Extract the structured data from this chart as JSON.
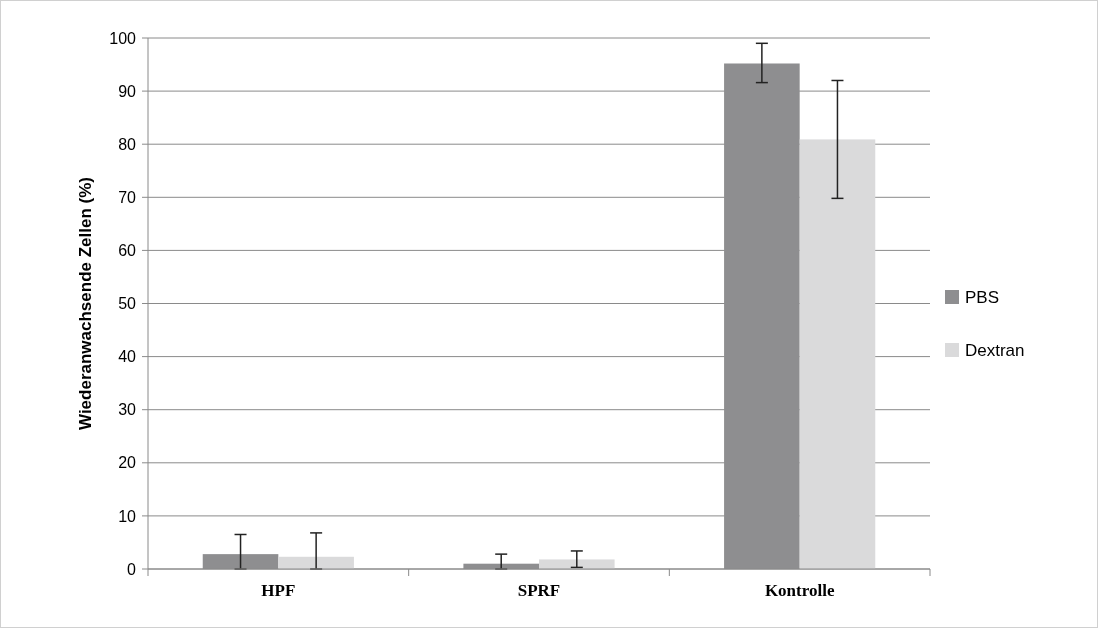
{
  "chart_data": {
    "type": "bar",
    "ylabel": "Wiederanwachsende Zellen (%)",
    "categories": [
      "HPF",
      "SPRF",
      "Kontrolle"
    ],
    "series": [
      {
        "name": "PBS",
        "color": "#8e8e90",
        "values": [
          2.8,
          1.0,
          95.2
        ],
        "errors": [
          [
            0,
            6.5
          ],
          [
            0,
            2.8
          ],
          [
            91.6,
            99.0
          ]
        ]
      },
      {
        "name": "Dextran",
        "color": "#dadadb",
        "values": [
          2.3,
          1.8,
          80.9
        ],
        "errors": [
          [
            0,
            6.8
          ],
          [
            0.3,
            3.4
          ],
          [
            69.8,
            92.0
          ]
        ]
      }
    ],
    "ylim": [
      0,
      100
    ],
    "yticks": [
      0,
      10,
      20,
      30,
      40,
      50,
      60,
      70,
      80,
      90,
      100
    ],
    "grid": "y",
    "legend": "right"
  }
}
